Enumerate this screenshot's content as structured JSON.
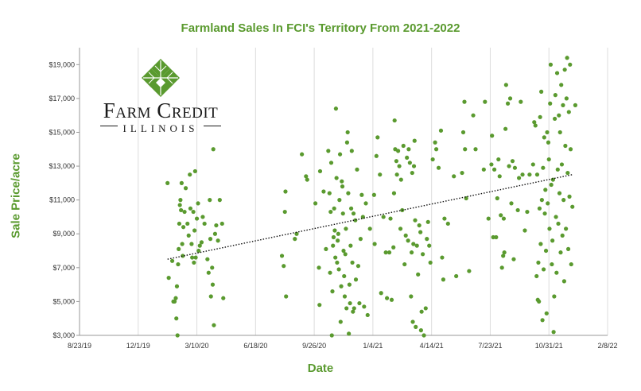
{
  "chart_data": {
    "type": "scatter",
    "title": "Farmland Sales In FCI's Territory From 2021-2022",
    "xlabel": "Date",
    "ylabel": "Sale Price/acre",
    "x_axis": "date",
    "xlim": [
      "2019-08-23",
      "2022-02-08"
    ],
    "ylim": [
      3000,
      20000
    ],
    "x_ticks": [
      "8/23/19",
      "12/1/19",
      "3/10/20",
      "6/18/20",
      "9/26/20",
      "1/4/21",
      "4/14/21",
      "7/23/21",
      "10/31/21",
      "2/8/22"
    ],
    "y_ticks": [
      "$3,000",
      "$5,000",
      "$7,000",
      "$9,000",
      "$11,000",
      "$13,000",
      "$15,000",
      "$17,000",
      "$19,000"
    ],
    "grid": "vertical",
    "trendline": {
      "style": "dotted linear",
      "x": [
        "2020-01-20",
        "2021-12-10"
      ],
      "y": [
        7500,
        12500
      ]
    },
    "marker_color": "#5a9a2f",
    "points": [
      [
        "2020-01-20",
        12000
      ],
      [
        "2020-01-22",
        6400
      ],
      [
        "2020-01-28",
        7400
      ],
      [
        "2020-01-30",
        5000
      ],
      [
        "2020-02-01",
        5000
      ],
      [
        "2020-02-03",
        5200
      ],
      [
        "2020-02-04",
        4000
      ],
      [
        "2020-02-05",
        5900
      ],
      [
        "2020-02-06",
        3000
      ],
      [
        "2020-02-07",
        7200
      ],
      [
        "2020-02-08",
        8100
      ],
      [
        "2020-02-09",
        9600
      ],
      [
        "2020-02-10",
        10700
      ],
      [
        "2020-02-11",
        11000
      ],
      [
        "2020-02-12",
        10400
      ],
      [
        "2020-02-13",
        12000
      ],
      [
        "2020-02-14",
        8400
      ],
      [
        "2020-02-15",
        7700
      ],
      [
        "2020-02-16",
        9400
      ],
      [
        "2020-02-18",
        10300
      ],
      [
        "2020-02-20",
        11700
      ],
      [
        "2020-02-23",
        9600
      ],
      [
        "2020-02-25",
        8900
      ],
      [
        "2020-02-27",
        12500
      ],
      [
        "2020-02-28",
        10500
      ],
      [
        "2020-03-01",
        8400
      ],
      [
        "2020-03-02",
        7600
      ],
      [
        "2020-03-04",
        10300
      ],
      [
        "2020-03-05",
        7300
      ],
      [
        "2020-03-06",
        9200
      ],
      [
        "2020-03-07",
        12700
      ],
      [
        "2020-03-08",
        7600
      ],
      [
        "2020-03-10",
        9900
      ],
      [
        "2020-03-12",
        10800
      ],
      [
        "2020-03-13",
        8000
      ],
      [
        "2020-03-15",
        8300
      ],
      [
        "2020-03-18",
        8500
      ],
      [
        "2020-03-20",
        10000
      ],
      [
        "2020-03-23",
        9600
      ],
      [
        "2020-03-28",
        7500
      ],
      [
        "2020-03-30",
        6700
      ],
      [
        "2020-04-01",
        11000
      ],
      [
        "2020-04-02",
        8700
      ],
      [
        "2020-04-03",
        5300
      ],
      [
        "2020-04-05",
        7000
      ],
      [
        "2020-04-06",
        6000
      ],
      [
        "2020-04-07",
        14000
      ],
      [
        "2020-04-08",
        3600
      ],
      [
        "2020-04-10",
        9000
      ],
      [
        "2020-04-12",
        9500
      ],
      [
        "2020-04-15",
        8600
      ],
      [
        "2020-04-18",
        11000
      ],
      [
        "2020-04-22",
        9600
      ],
      [
        "2020-04-24",
        5200
      ],
      [
        "2020-08-02",
        7700
      ],
      [
        "2020-08-05",
        7100
      ],
      [
        "2020-08-07",
        10300
      ],
      [
        "2020-08-08",
        11500
      ],
      [
        "2020-08-09",
        5300
      ],
      [
        "2020-08-24",
        8700
      ],
      [
        "2020-08-27",
        9000
      ],
      [
        "2020-09-05",
        13700
      ],
      [
        "2020-09-12",
        12400
      ],
      [
        "2020-09-14",
        12200
      ],
      [
        "2020-09-28",
        10800
      ],
      [
        "2020-10-04",
        7000
      ],
      [
        "2020-10-05",
        4800
      ],
      [
        "2020-10-06",
        12700
      ],
      [
        "2020-10-12",
        11500
      ],
      [
        "2020-10-16",
        8100
      ],
      [
        "2020-10-20",
        13900
      ],
      [
        "2020-10-22",
        11400
      ],
      [
        "2020-10-23",
        6700
      ],
      [
        "2020-10-24",
        10300
      ],
      [
        "2020-10-25",
        13200
      ],
      [
        "2020-10-26",
        3000
      ],
      [
        "2020-10-27",
        5600
      ],
      [
        "2020-10-28",
        8300
      ],
      [
        "2020-10-29",
        8800
      ],
      [
        "2020-10-30",
        10500
      ],
      [
        "2020-10-31",
        9200
      ],
      [
        "2020-11-01",
        7600
      ],
      [
        "2020-11-02",
        16400
      ],
      [
        "2020-11-03",
        12300
      ],
      [
        "2020-11-04",
        7300
      ],
      [
        "2020-11-05",
        8600
      ],
      [
        "2020-11-06",
        9000
      ],
      [
        "2020-11-07",
        6900
      ],
      [
        "2020-11-08",
        11000
      ],
      [
        "2020-11-09",
        13700
      ],
      [
        "2020-11-10",
        3800
      ],
      [
        "2020-11-11",
        5900
      ],
      [
        "2020-11-12",
        12100
      ],
      [
        "2020-11-13",
        11800
      ],
      [
        "2020-11-14",
        10200
      ],
      [
        "2020-11-15",
        8000
      ],
      [
        "2020-11-16",
        6500
      ],
      [
        "2020-11-17",
        5300
      ],
      [
        "2020-11-18",
        7800
      ],
      [
        "2020-11-19",
        9300
      ],
      [
        "2020-11-20",
        4600
      ],
      [
        "2020-11-21",
        14400
      ],
      [
        "2020-11-22",
        15000
      ],
      [
        "2020-11-23",
        11400
      ],
      [
        "2020-11-24",
        3100
      ],
      [
        "2020-11-25",
        6000
      ],
      [
        "2020-11-26",
        4900
      ],
      [
        "2020-11-27",
        8300
      ],
      [
        "2020-11-28",
        10500
      ],
      [
        "2020-11-29",
        13900
      ],
      [
        "2020-11-30",
        7300
      ],
      [
        "2020-12-01",
        4400
      ],
      [
        "2020-12-02",
        10200
      ],
      [
        "2020-12-03",
        4600
      ],
      [
        "2020-12-05",
        9800
      ],
      [
        "2020-12-06",
        6300
      ],
      [
        "2020-12-08",
        12800
      ],
      [
        "2020-12-10",
        7100
      ],
      [
        "2020-12-12",
        4900
      ],
      [
        "2020-12-14",
        8700
      ],
      [
        "2020-12-16",
        11300
      ],
      [
        "2020-12-18",
        10000
      ],
      [
        "2020-12-20",
        4700
      ],
      [
        "2020-12-23",
        10800
      ],
      [
        "2020-12-26",
        4200
      ],
      [
        "2020-12-30",
        9300
      ],
      [
        "2021-01-06",
        11300
      ],
      [
        "2021-01-07",
        8400
      ],
      [
        "2021-01-10",
        13600
      ],
      [
        "2021-01-12",
        14700
      ],
      [
        "2021-01-16",
        12500
      ],
      [
        "2021-01-18",
        5500
      ],
      [
        "2021-01-22",
        10000
      ],
      [
        "2021-01-26",
        7900
      ],
      [
        "2021-01-28",
        5200
      ],
      [
        "2021-02-01",
        7900
      ],
      [
        "2021-02-03",
        9900
      ],
      [
        "2021-02-05",
        5100
      ],
      [
        "2021-02-08",
        8200
      ],
      [
        "2021-02-09",
        11400
      ],
      [
        "2021-02-10",
        15700
      ],
      [
        "2021-02-11",
        14000
      ],
      [
        "2021-02-13",
        13300
      ],
      [
        "2021-02-14",
        12500
      ],
      [
        "2021-02-16",
        13900
      ],
      [
        "2021-02-18",
        13000
      ],
      [
        "2021-02-20",
        9300
      ],
      [
        "2021-02-21",
        12200
      ],
      [
        "2021-02-23",
        10400
      ],
      [
        "2021-02-25",
        14200
      ],
      [
        "2021-02-27",
        7200
      ],
      [
        "2021-03-01",
        8900
      ],
      [
        "2021-03-03",
        13500
      ],
      [
        "2021-03-05",
        8600
      ],
      [
        "2021-03-06",
        14000
      ],
      [
        "2021-03-08",
        13200
      ],
      [
        "2021-03-10",
        5300
      ],
      [
        "2021-03-11",
        7900
      ],
      [
        "2021-03-12",
        12600
      ],
      [
        "2021-03-13",
        3800
      ],
      [
        "2021-03-14",
        8400
      ],
      [
        "2021-03-15",
        13000
      ],
      [
        "2021-03-16",
        14500
      ],
      [
        "2021-03-17",
        9800
      ],
      [
        "2021-03-18",
        3500
      ],
      [
        "2021-03-20",
        8300
      ],
      [
        "2021-03-22",
        6600
      ],
      [
        "2021-03-24",
        9500
      ],
      [
        "2021-03-26",
        9100
      ],
      [
        "2021-03-27",
        3300
      ],
      [
        "2021-03-28",
        4400
      ],
      [
        "2021-03-30",
        7800
      ],
      [
        "2021-04-01",
        3000
      ],
      [
        "2021-04-04",
        4600
      ],
      [
        "2021-04-06",
        8700
      ],
      [
        "2021-04-08",
        9700
      ],
      [
        "2021-04-10",
        8300
      ],
      [
        "2021-04-12",
        7300
      ],
      [
        "2021-04-16",
        13400
      ],
      [
        "2021-04-20",
        14400
      ],
      [
        "2021-04-22",
        14000
      ],
      [
        "2021-04-26",
        12900
      ],
      [
        "2021-04-30",
        15100
      ],
      [
        "2021-05-02",
        7600
      ],
      [
        "2021-05-04",
        6300
      ],
      [
        "2021-05-06",
        9900
      ],
      [
        "2021-05-12",
        9600
      ],
      [
        "2021-05-22",
        12400
      ],
      [
        "2021-05-26",
        6500
      ],
      [
        "2021-06-05",
        12600
      ],
      [
        "2021-06-07",
        15000
      ],
      [
        "2021-06-09",
        16800
      ],
      [
        "2021-06-10",
        14000
      ],
      [
        "2021-06-12",
        11100
      ],
      [
        "2021-06-17",
        6800
      ],
      [
        "2021-06-24",
        16000
      ],
      [
        "2021-06-28",
        14000
      ],
      [
        "2021-07-12",
        12800
      ],
      [
        "2021-07-14",
        16800
      ],
      [
        "2021-07-20",
        9900
      ],
      [
        "2021-07-25",
        13100
      ],
      [
        "2021-07-26",
        14800
      ],
      [
        "2021-07-28",
        8800
      ],
      [
        "2021-07-30",
        12800
      ],
      [
        "2021-08-02",
        8800
      ],
      [
        "2021-08-04",
        11100
      ],
      [
        "2021-08-06",
        13400
      ],
      [
        "2021-08-08",
        12400
      ],
      [
        "2021-08-10",
        10100
      ],
      [
        "2021-08-12",
        7000
      ],
      [
        "2021-08-14",
        7700
      ],
      [
        "2021-08-15",
        9900
      ],
      [
        "2021-08-16",
        7900
      ],
      [
        "2021-08-18",
        15200
      ],
      [
        "2021-08-19",
        17800
      ],
      [
        "2021-08-22",
        16700
      ],
      [
        "2021-08-24",
        13000
      ],
      [
        "2021-08-26",
        17000
      ],
      [
        "2021-08-28",
        10800
      ],
      [
        "2021-08-30",
        13300
      ],
      [
        "2021-09-01",
        7500
      ],
      [
        "2021-09-03",
        12900
      ],
      [
        "2021-09-08",
        10400
      ],
      [
        "2021-09-10",
        12300
      ],
      [
        "2021-09-13",
        16800
      ],
      [
        "2021-09-16",
        12500
      ],
      [
        "2021-09-20",
        9200
      ],
      [
        "2021-09-24",
        10300
      ],
      [
        "2021-09-28",
        12500
      ],
      [
        "2021-10-04",
        13100
      ],
      [
        "2021-10-06",
        15600
      ],
      [
        "2021-10-08",
        15400
      ],
      [
        "2021-10-10",
        6500
      ],
      [
        "2021-10-11",
        12500
      ],
      [
        "2021-10-12",
        5100
      ],
      [
        "2021-10-13",
        7300
      ],
      [
        "2021-10-14",
        5000
      ],
      [
        "2021-10-15",
        10500
      ],
      [
        "2021-10-16",
        15900
      ],
      [
        "2021-10-17",
        8400
      ],
      [
        "2021-10-18",
        17400
      ],
      [
        "2021-10-19",
        11000
      ],
      [
        "2021-10-20",
        3900
      ],
      [
        "2021-10-21",
        12900
      ],
      [
        "2021-10-22",
        6900
      ],
      [
        "2021-10-23",
        14700
      ],
      [
        "2021-10-24",
        10200
      ],
      [
        "2021-10-25",
        11600
      ],
      [
        "2021-10-26",
        8000
      ],
      [
        "2021-10-27",
        4300
      ],
      [
        "2021-10-28",
        15000
      ],
      [
        "2021-10-29",
        10800
      ],
      [
        "2021-10-30",
        14400
      ],
      [
        "2021-10-31",
        13400
      ],
      [
        "2021-11-01",
        9300
      ],
      [
        "2021-11-02",
        16700
      ],
      [
        "2021-11-03",
        19000
      ],
      [
        "2021-11-04",
        11900
      ],
      [
        "2021-11-05",
        7200
      ],
      [
        "2021-11-06",
        8600
      ],
      [
        "2021-11-07",
        12200
      ],
      [
        "2021-11-08",
        3200
      ],
      [
        "2021-11-09",
        5300
      ],
      [
        "2021-11-10",
        15800
      ],
      [
        "2021-11-11",
        17200
      ],
      [
        "2021-11-12",
        10000
      ],
      [
        "2021-11-13",
        6700
      ],
      [
        "2021-11-14",
        18500
      ],
      [
        "2021-11-15",
        12800
      ],
      [
        "2021-11-16",
        9600
      ],
      [
        "2021-11-17",
        16000
      ],
      [
        "2021-11-18",
        11400
      ],
      [
        "2021-11-19",
        15000
      ],
      [
        "2021-11-20",
        7900
      ],
      [
        "2021-11-21",
        17800
      ],
      [
        "2021-11-22",
        13100
      ],
      [
        "2021-11-23",
        8900
      ],
      [
        "2021-11-24",
        16600
      ],
      [
        "2021-11-25",
        11000
      ],
      [
        "2021-11-26",
        6200
      ],
      [
        "2021-11-27",
        18700
      ],
      [
        "2021-11-28",
        14200
      ],
      [
        "2021-11-29",
        9300
      ],
      [
        "2021-11-30",
        17000
      ],
      [
        "2021-12-01",
        19400
      ],
      [
        "2021-12-02",
        12600
      ],
      [
        "2021-12-03",
        8100
      ],
      [
        "2021-12-04",
        16200
      ],
      [
        "2021-12-05",
        11200
      ],
      [
        "2021-12-06",
        19000
      ],
      [
        "2021-12-07",
        14000
      ],
      [
        "2021-12-08",
        7200
      ],
      [
        "2021-12-10",
        10600
      ],
      [
        "2021-12-15",
        16600
      ]
    ]
  },
  "logo": {
    "line1": "Farm Credit",
    "line2": "ILLINOIS"
  }
}
